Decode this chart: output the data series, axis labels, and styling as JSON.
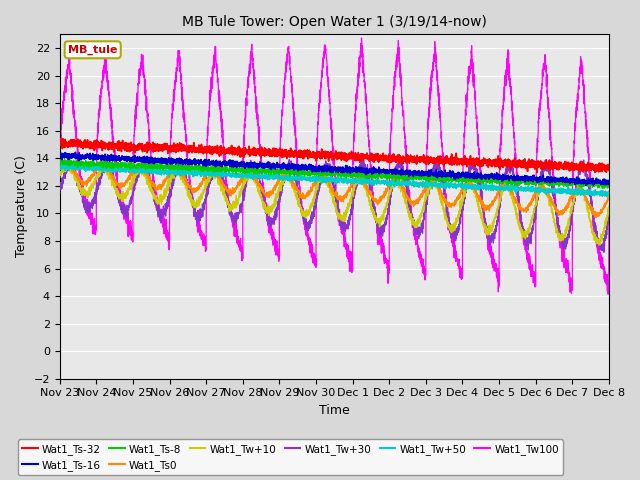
{
  "title": "MB Tule Tower: Open Water 1 (3/19/14-now)",
  "ylabel": "Temperature (C)",
  "xlabel": "Time",
  "ylim": [
    -2,
    23
  ],
  "yticks": [
    -2,
    0,
    2,
    4,
    6,
    8,
    10,
    12,
    14,
    16,
    18,
    20,
    22
  ],
  "date_labels": [
    "Nov 23",
    "Nov 24",
    "Nov 25",
    "Nov 26",
    "Nov 27",
    "Nov 28",
    "Nov 29",
    "Nov 30",
    "Dec 1",
    "Dec 2",
    "Dec 3",
    "Dec 4",
    "Dec 5",
    "Dec 6",
    "Dec 7",
    "Dec 8"
  ],
  "n_days": 15,
  "series": {
    "Wat1_Ts-32": {
      "color": "#ff0000"
    },
    "Wat1_Ts-16": {
      "color": "#0000cc"
    },
    "Wat1_Ts-8": {
      "color": "#00cc00"
    },
    "Wat1_Ts0": {
      "color": "#ff8800"
    },
    "Wat1_Tw+10": {
      "color": "#cccc00"
    },
    "Wat1_Tw+30": {
      "color": "#8833cc"
    },
    "Wat1_Tw+50": {
      "color": "#00cccc"
    },
    "Wat1_Tw100": {
      "color": "#ff00ff"
    }
  },
  "legend_label": "MB_tule",
  "legend_label_color": "#cc0000",
  "bg_color": "#d8d8d8",
  "plot_bg_color": "#e8e8e8",
  "figsize": [
    6.4,
    4.8
  ],
  "dpi": 100
}
